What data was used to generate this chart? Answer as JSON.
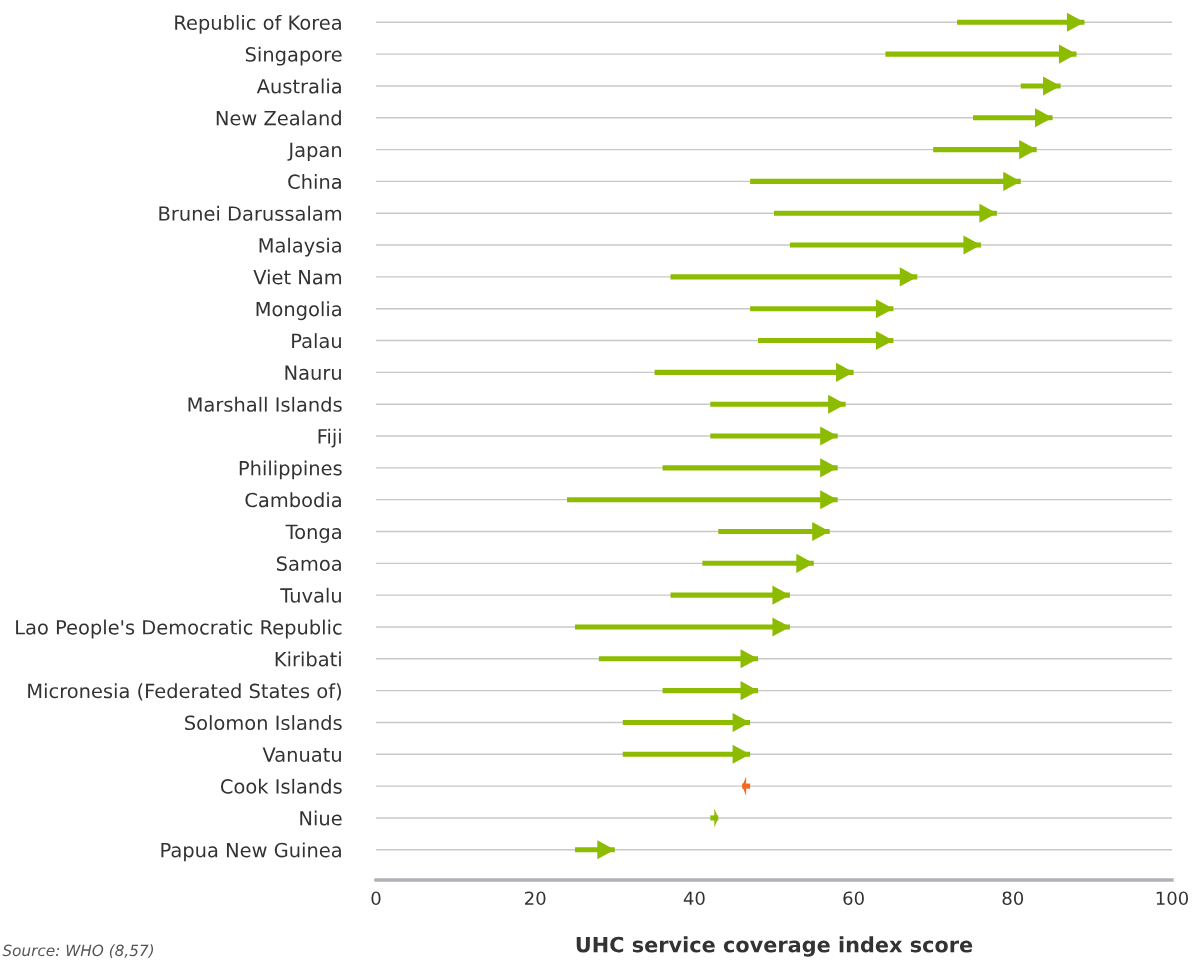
{
  "chart_data": {
    "type": "bar",
    "orientation": "horizontal",
    "xlabel": "UHC service coverage index score",
    "categories": [
      "Republic of Korea",
      "Singapore",
      "Australia",
      "New Zealand",
      "Japan",
      "China",
      "Brunei Darussalam",
      "Malaysia",
      "Viet Nam",
      "Mongolia",
      "Palau",
      "Nauru",
      "Marshall Islands",
      "Fiji",
      "Philippines",
      "Cambodia",
      "Tonga",
      "Samoa",
      "Tuvalu",
      "Lao People's Democratic Republic",
      "Kiribati",
      "Micronesia (Federated States of)",
      "Solomon Islands",
      "Vanuatu",
      "Cook Islands",
      "Niue",
      "Papua New Guinea"
    ],
    "base": [
      73,
      64,
      81,
      75,
      70,
      47,
      50,
      52,
      37,
      47,
      48,
      35,
      42,
      42,
      36,
      24,
      43,
      41,
      37,
      25,
      28,
      36,
      31,
      31,
      47,
      42,
      25
    ],
    "values": [
      16,
      24,
      5,
      10,
      13,
      34,
      28,
      24,
      31,
      18,
      17,
      25,
      17,
      16,
      22,
      34,
      14,
      14,
      15,
      27,
      20,
      12,
      16,
      16,
      -1,
      1,
      5
    ],
    "colors": [
      "#8cbb00",
      "#8cbb00",
      "#8cbb00",
      "#8cbb00",
      "#8cbb00",
      "#8cbb00",
      "#8cbb00",
      "#8cbb00",
      "#8cbb00",
      "#8cbb00",
      "#8cbb00",
      "#8cbb00",
      "#8cbb00",
      "#8cbb00",
      "#8cbb00",
      "#8cbb00",
      "#8cbb00",
      "#8cbb00",
      "#8cbb00",
      "#8cbb00",
      "#8cbb00",
      "#8cbb00",
      "#8cbb00",
      "#8cbb00",
      "#f26a21",
      "#8cbb00",
      "#8cbb00"
    ],
    "xlim": [
      0,
      100
    ],
    "xticks": [
      0,
      20,
      40,
      60,
      80,
      100
    ],
    "grid": "y",
    "annotations": [
      "Source: WHO (8,57)"
    ]
  }
}
